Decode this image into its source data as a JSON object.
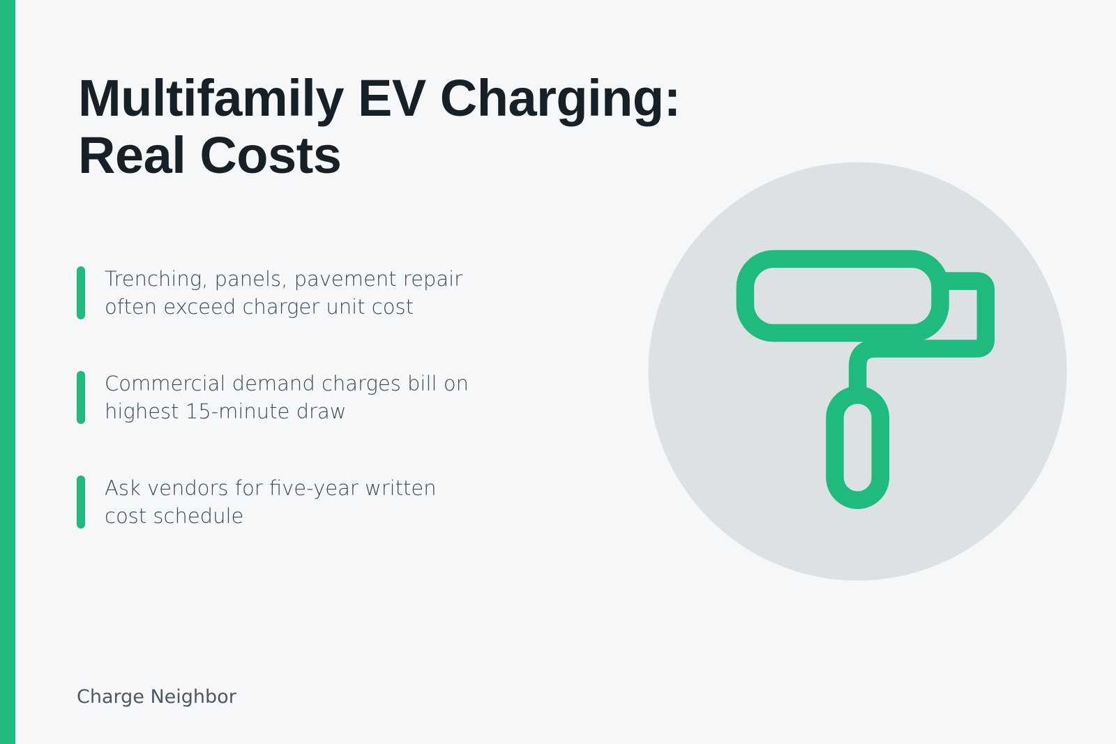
{
  "header": {
    "title": "Multifamily EV Charging: Real Costs"
  },
  "bullets": [
    "Trenching, panels, pavement repair often exceed charger unit cost",
    "Commercial demand charges bill on highest 15-minute draw",
    "Ask vendors for five-year written cost schedule"
  ],
  "footer": "Charge Neighbor"
}
